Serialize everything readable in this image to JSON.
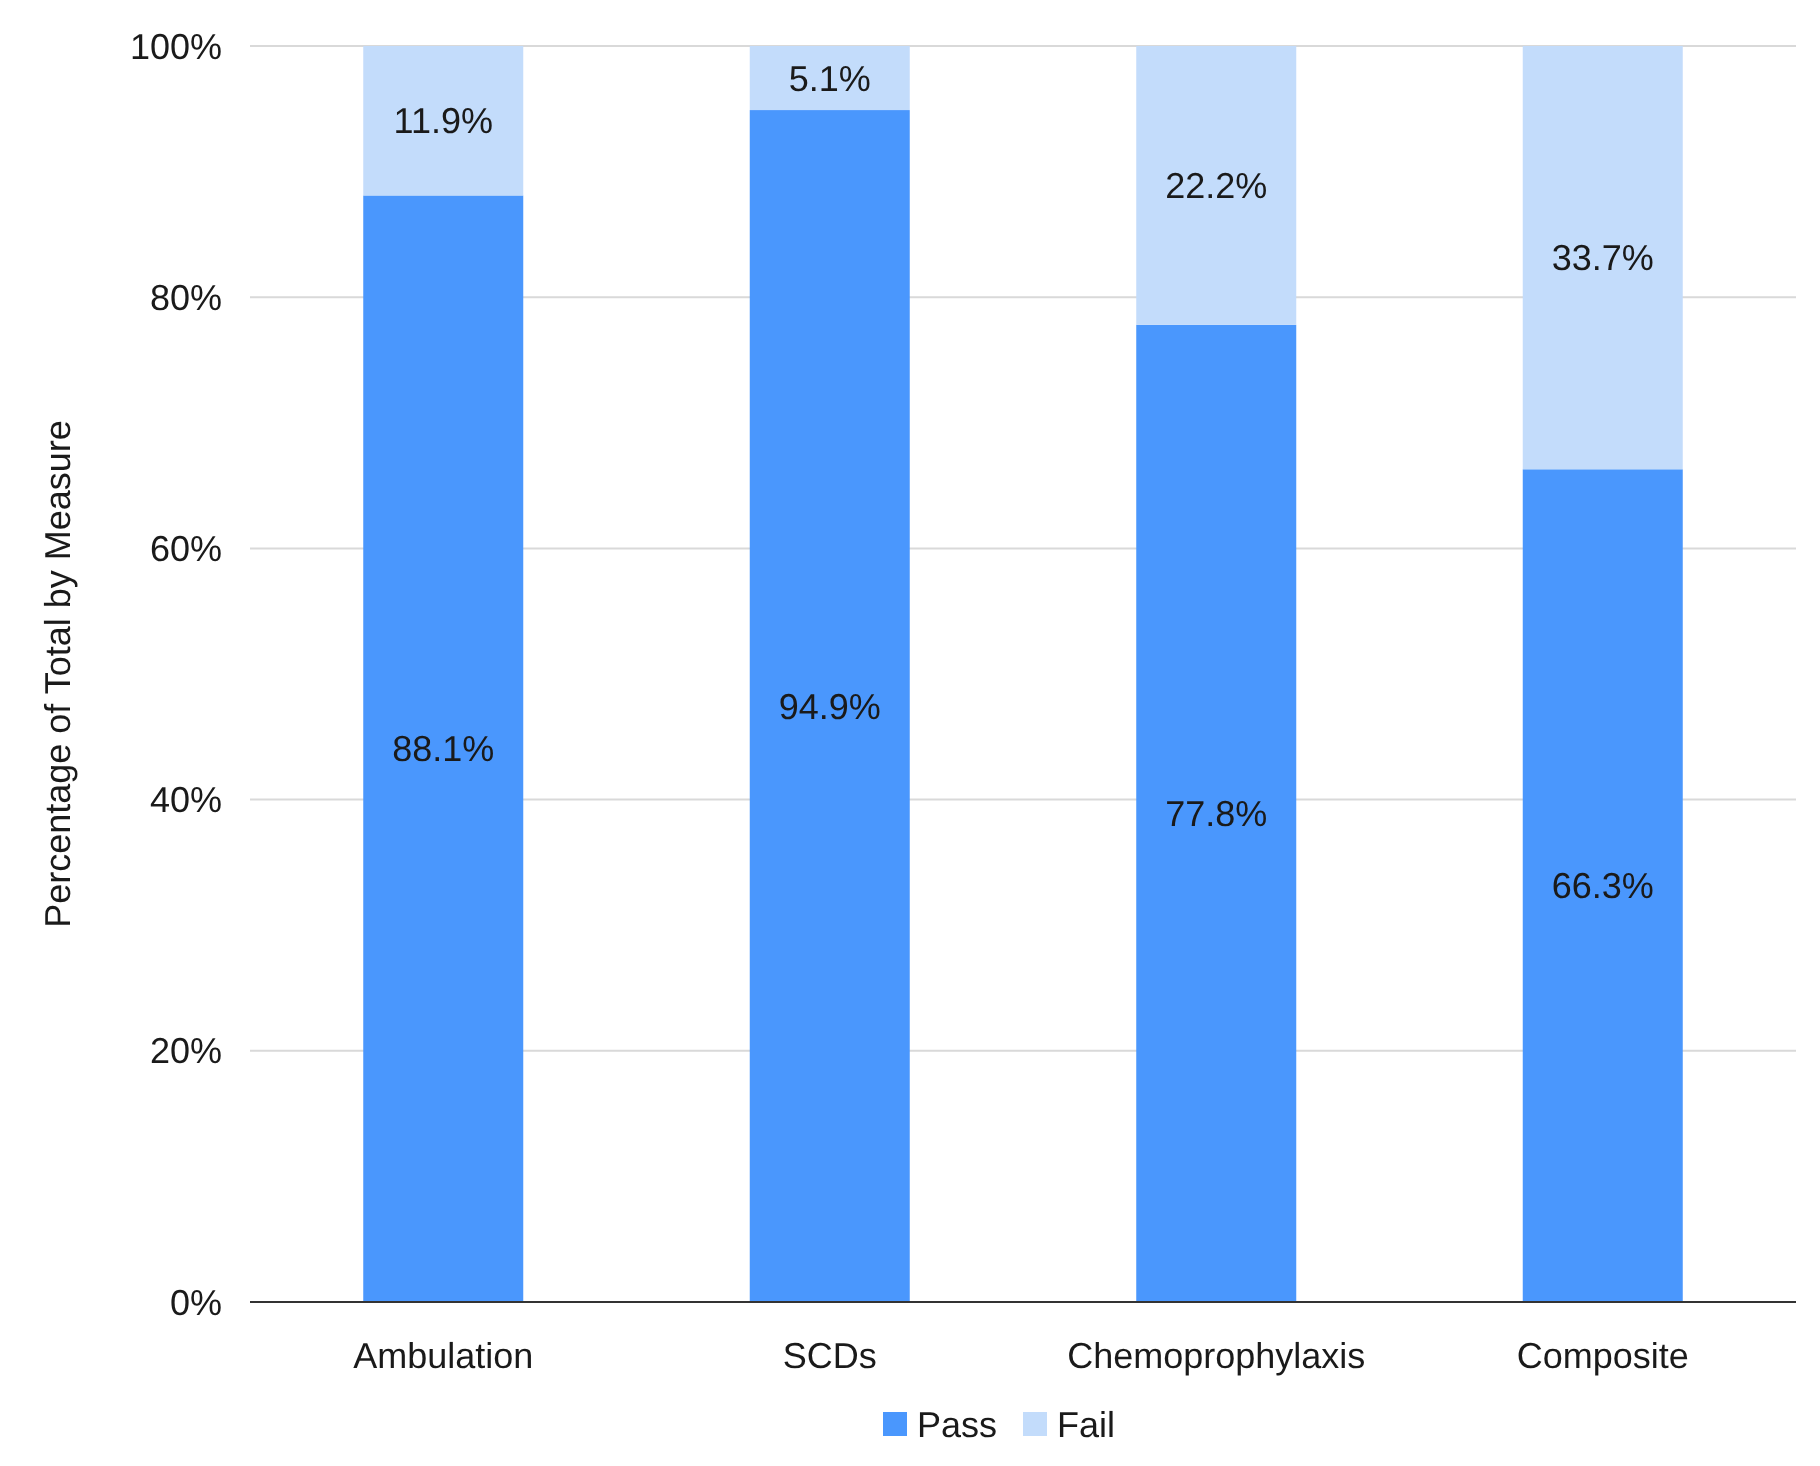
{
  "chart_data": {
    "type": "bar",
    "stacked": true,
    "ylabel": "Percentage of Total by Measure",
    "categories": [
      "Ambulation",
      "SCDs",
      "Chemoprophylaxis",
      "Composite"
    ],
    "series": [
      {
        "name": "Pass",
        "color": "#4a97fd",
        "values": [
          88.1,
          94.9,
          77.8,
          66.3
        ],
        "value_labels": [
          "88.1%",
          "94.9%",
          "77.8%",
          "66.3%"
        ]
      },
      {
        "name": "Fail",
        "color": "#c3dcfb",
        "values": [
          11.9,
          5.1,
          22.2,
          33.7
        ],
        "value_labels": [
          "11.9%",
          "5.1%",
          "22.2%",
          "33.7%"
        ]
      }
    ],
    "ylim": [
      0,
      100
    ],
    "yticks": [
      {
        "value": 0,
        "label": "0%"
      },
      {
        "value": 20,
        "label": "20%"
      },
      {
        "value": 40,
        "label": "40%"
      },
      {
        "value": 60,
        "label": "60%"
      },
      {
        "value": 80,
        "label": "80%"
      },
      {
        "value": 100,
        "label": "100%"
      }
    ],
    "grid": "y",
    "legend": "bottom"
  }
}
